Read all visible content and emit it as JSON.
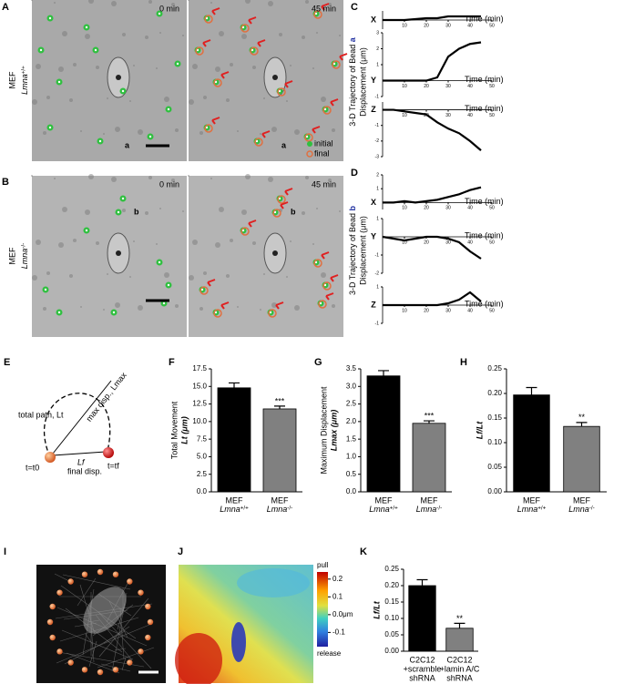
{
  "panel_labels": [
    "A",
    "B",
    "C",
    "D",
    "E",
    "F",
    "G",
    "H",
    "I",
    "J",
    "K"
  ],
  "rows": [
    {
      "cell": "MEF",
      "genotype": "Lmna+/+",
      "times": [
        "0 min",
        "45 min"
      ],
      "bead": "a"
    },
    {
      "cell": "MEF",
      "genotype": "Lmna-/-",
      "times": [
        "0 min",
        "45 min"
      ],
      "bead": "b"
    }
  ],
  "legend": [
    "initial",
    "final"
  ],
  "trajectory_titles": [
    {
      "title": "3-D Trajectory of Bead",
      "bead": "a",
      "ylabel": "Displacement (μm)"
    },
    {
      "title": "3-D Trajectory of Bead",
      "bead": "b",
      "ylabel": "Displacement (μm)"
    }
  ],
  "diagram": {
    "total_path": "total path, Lt",
    "max_disp": "max disp., Lmax",
    "lf": "Lf",
    "final_disp": "final disp.",
    "t0": "t=t0",
    "tf": "t=tf"
  },
  "colorbar": {
    "top": "pull",
    "bottom": "release",
    "lim": [
      -0.18,
      0.24
    ],
    "ticks": [
      0.2,
      0.1,
      {
        "value": 0,
        "label": "0.0μm"
      },
      -0.1
    ]
  },
  "chart_data": [
    {
      "type": "line",
      "axis_name": "X",
      "xlabel": "Time (min)",
      "x": [
        0,
        5,
        10,
        15,
        20,
        25,
        30,
        35,
        40,
        45
      ],
      "values": [
        0,
        0,
        0,
        0.05,
        0.1,
        0.1,
        0.2,
        0.2,
        0.2,
        0.2
      ],
      "xlim": [
        0,
        50
      ],
      "xticks": [
        10,
        20,
        30,
        40,
        50
      ],
      "ylim": [
        -0.5,
        0.5
      ],
      "yticks": []
    },
    {
      "type": "line",
      "axis_name": "Y",
      "xlabel": "Time (min)",
      "x": [
        0,
        5,
        10,
        15,
        20,
        25,
        30,
        35,
        40,
        45
      ],
      "values": [
        0,
        0,
        0,
        0,
        0,
        0.2,
        1.5,
        2.0,
        2.3,
        2.4
      ],
      "xlim": [
        0,
        50
      ],
      "xticks": [
        10,
        20,
        30,
        40,
        50
      ],
      "ylim": [
        -1,
        3
      ],
      "yticks": [
        3,
        2,
        1,
        -1
      ]
    },
    {
      "type": "line",
      "axis_name": "Z",
      "xlabel": "Time (min)",
      "x": [
        0,
        5,
        10,
        15,
        20,
        25,
        30,
        35,
        40,
        45
      ],
      "values": [
        0,
        0,
        -0.1,
        -0.2,
        -0.3,
        -0.8,
        -1.2,
        -1.5,
        -2.0,
        -2.6
      ],
      "xlim": [
        0,
        50
      ],
      "xticks": [
        10,
        20,
        30,
        40,
        50
      ],
      "ylim": [
        -3,
        0.5
      ],
      "yticks": [
        -1,
        -2,
        -3
      ]
    },
    {
      "type": "line",
      "axis_name": "X",
      "xlabel": "Time (min)",
      "x": [
        0,
        5,
        10,
        15,
        20,
        25,
        30,
        35,
        40,
        45
      ],
      "values": [
        0,
        0,
        0.1,
        0,
        0.1,
        0.2,
        0.4,
        0.6,
        0.9,
        1.1
      ],
      "xlim": [
        0,
        50
      ],
      "xticks": [
        10,
        20,
        30,
        40,
        50
      ],
      "ylim": [
        -0.5,
        2
      ],
      "yticks": [
        2,
        1
      ]
    },
    {
      "type": "line",
      "axis_name": "Y",
      "xlabel": "Time (min)",
      "x": [
        0,
        5,
        10,
        15,
        20,
        25,
        30,
        35,
        40,
        45
      ],
      "values": [
        0,
        -0.1,
        -0.2,
        -0.1,
        0,
        0,
        -0.1,
        -0.3,
        -0.8,
        -1.2
      ],
      "xlim": [
        0,
        50
      ],
      "xticks": [
        10,
        20,
        30,
        40,
        50
      ],
      "ylim": [
        -2,
        1
      ],
      "yticks": [
        1,
        -1,
        -2
      ]
    },
    {
      "type": "line",
      "axis_name": "Z",
      "xlabel": "Time (min)",
      "x": [
        0,
        5,
        10,
        15,
        20,
        25,
        30,
        35,
        40,
        45
      ],
      "values": [
        0,
        0,
        0,
        0,
        0,
        0,
        0.1,
        0.3,
        0.7,
        0.2
      ],
      "xlim": [
        0,
        50
      ],
      "xticks": [
        10,
        20,
        30,
        40,
        50
      ],
      "ylim": [
        -1,
        1
      ],
      "yticks": [
        1,
        -1
      ]
    },
    {
      "type": "bar",
      "categories": [
        [
          "MEF",
          "Lmna+/+"
        ],
        [
          "MEF",
          "Lmna-/-"
        ]
      ],
      "values": [
        14.8,
        11.8
      ],
      "errors": [
        0.7,
        0.4
      ],
      "colors": [
        "#000000",
        "#808080"
      ],
      "annotation": "***",
      "ylabel": [
        "Total Movement",
        "Lt (μm)"
      ],
      "ylim": [
        0,
        17.5
      ],
      "yticks": [
        {
          "value": 0,
          "label": "0.0"
        },
        2.5,
        {
          "value": 5,
          "label": "5.0"
        },
        7.5,
        {
          "value": 10,
          "label": "10.0"
        },
        12.5,
        {
          "value": 15,
          "label": "15.0"
        },
        17.5
      ]
    },
    {
      "type": "bar",
      "categories": [
        [
          "MEF",
          "Lmna+/+"
        ],
        [
          "MEF",
          "Lmna-/-"
        ]
      ],
      "values": [
        3.3,
        1.95
      ],
      "errors": [
        0.15,
        0.07
      ],
      "colors": [
        "#000000",
        "#808080"
      ],
      "annotation": "***",
      "ylabel": [
        "Maximum Displacement",
        "Lmax (μm)"
      ],
      "ylim": [
        0,
        3.5
      ],
      "yticks": [
        {
          "value": 0,
          "label": "0.0"
        },
        0.5,
        {
          "value": 1,
          "label": "1.0"
        },
        1.5,
        {
          "value": 2,
          "label": "2.0"
        },
        2.5,
        {
          "value": 3,
          "label": "3.0"
        },
        3.5
      ]
    },
    {
      "type": "bar",
      "categories": [
        [
          "MEF",
          "Lmna+/+"
        ],
        [
          "MEF",
          "Lmna-/-"
        ]
      ],
      "values": [
        0.197,
        0.133
      ],
      "errors": [
        0.015,
        0.008
      ],
      "colors": [
        "#000000",
        "#808080"
      ],
      "annotation": "**",
      "ylabel": [
        "Lf/Lt"
      ],
      "ylim": [
        0,
        0.25
      ],
      "yticks": [
        {
          "value": 0,
          "label": "0.00"
        },
        0.05,
        {
          "value": 0.1,
          "label": "0.10"
        },
        0.15,
        {
          "value": 0.2,
          "label": "0.20"
        },
        0.25
      ]
    },
    {
      "type": "bar",
      "categories": [
        [
          "C2C12",
          "+scramble",
          "shRNA"
        ],
        [
          "C2C12",
          "+lamin A/C",
          "shRNA"
        ]
      ],
      "values": [
        0.2,
        0.07
      ],
      "errors": [
        0.018,
        0.015
      ],
      "colors": [
        "#000000",
        "#808080"
      ],
      "annotation": "**",
      "ylabel": [
        "Lf/Lt"
      ],
      "ylim": [
        0,
        0.25
      ],
      "yticks": [
        {
          "value": 0,
          "label": "0.00"
        },
        0.05,
        {
          "value": 0.1,
          "label": "0.10"
        },
        0.15,
        {
          "value": 0.2,
          "label": "0.20"
        },
        0.25
      ]
    }
  ]
}
